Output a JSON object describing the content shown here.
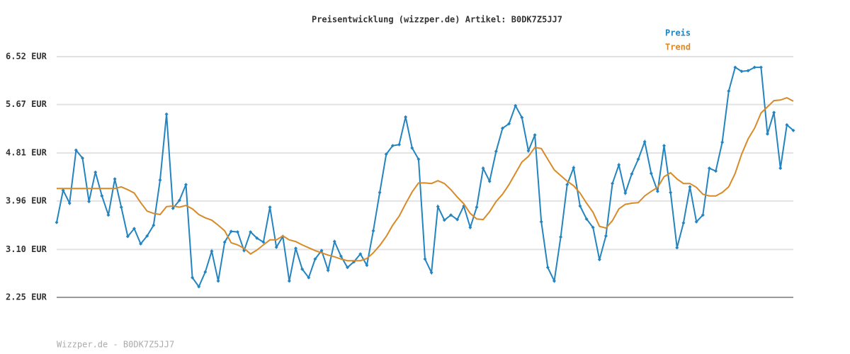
{
  "chart_data": {
    "type": "line",
    "title": "Preisentwicklung (wizzper.de) Artikel: B0DK7Z5JJ7",
    "footer": "Wizzper.de - B0DK7Z5JJ7",
    "ylim": [
      2.25,
      6.52
    ],
    "yticks": [
      {
        "value": 2.25,
        "label": "2.25 EUR"
      },
      {
        "value": 3.1,
        "label": "3.10 EUR"
      },
      {
        "value": 3.96,
        "label": "3.96 EUR"
      },
      {
        "value": 4.81,
        "label": "4.81 EUR"
      },
      {
        "value": 5.67,
        "label": "5.67 EUR"
      },
      {
        "value": 6.52,
        "label": "6.52 EUR"
      }
    ],
    "grid": true,
    "legend": "top-right",
    "series": [
      {
        "name": "Preis",
        "color": "#2384c0",
        "markers": true,
        "values": [
          3.58,
          4.15,
          3.92,
          4.86,
          4.72,
          3.95,
          4.47,
          4.05,
          3.71,
          4.35,
          3.85,
          3.33,
          3.47,
          3.2,
          3.34,
          3.53,
          4.33,
          5.5,
          3.83,
          3.97,
          4.25,
          2.6,
          2.44,
          2.7,
          3.07,
          2.54,
          3.23,
          3.42,
          3.41,
          3.08,
          3.41,
          3.3,
          3.23,
          3.85,
          3.14,
          3.33,
          2.54,
          3.12,
          2.75,
          2.6,
          2.93,
          3.08,
          2.73,
          3.24,
          2.98,
          2.78,
          2.88,
          3.02,
          2.82,
          3.43,
          4.11,
          4.79,
          4.94,
          4.96,
          5.45,
          4.9,
          4.7,
          2.93,
          2.69,
          3.86,
          3.62,
          3.71,
          3.63,
          3.87,
          3.49,
          3.85,
          4.54,
          4.31,
          4.84,
          5.25,
          5.33,
          5.65,
          5.44,
          4.85,
          5.13,
          3.59,
          2.78,
          2.54,
          3.32,
          4.25,
          4.55,
          3.87,
          3.64,
          3.49,
          2.92,
          3.34,
          4.27,
          4.6,
          4.1,
          4.44,
          4.7,
          5.01,
          4.45,
          4.13,
          4.94,
          4.11,
          3.13,
          3.57,
          4.21,
          3.59,
          3.71,
          4.54,
          4.49,
          5.0,
          5.91,
          6.33,
          6.26,
          6.27,
          6.33,
          6.33,
          5.15,
          5.53,
          4.54,
          5.31,
          5.21
        ]
      },
      {
        "name": "Trend",
        "color": "#d88a28",
        "markers": false,
        "values": [
          4.18,
          4.18,
          4.18,
          4.18,
          4.18,
          4.18,
          4.18,
          4.18,
          4.18,
          4.18,
          4.21,
          4.16,
          4.1,
          3.93,
          3.78,
          3.74,
          3.72,
          3.86,
          3.87,
          3.85,
          3.88,
          3.82,
          3.72,
          3.66,
          3.62,
          3.53,
          3.43,
          3.22,
          3.18,
          3.12,
          3.02,
          3.09,
          3.18,
          3.27,
          3.27,
          3.34,
          3.27,
          3.24,
          3.18,
          3.13,
          3.08,
          3.04,
          3.0,
          2.97,
          2.93,
          2.9,
          2.9,
          2.9,
          2.94,
          3.04,
          3.17,
          3.33,
          3.53,
          3.69,
          3.91,
          4.12,
          4.28,
          4.28,
          4.27,
          4.32,
          4.27,
          4.16,
          4.03,
          3.91,
          3.74,
          3.64,
          3.63,
          3.77,
          3.95,
          4.08,
          4.25,
          4.45,
          4.65,
          4.75,
          4.91,
          4.89,
          4.7,
          4.51,
          4.41,
          4.31,
          4.23,
          4.1,
          3.92,
          3.76,
          3.51,
          3.48,
          3.61,
          3.82,
          3.9,
          3.92,
          3.93,
          4.05,
          4.13,
          4.2,
          4.39,
          4.46,
          4.35,
          4.27,
          4.27,
          4.2,
          4.08,
          4.05,
          4.05,
          4.11,
          4.21,
          4.45,
          4.79,
          5.06,
          5.25,
          5.52,
          5.63,
          5.74,
          5.75,
          5.79,
          5.73
        ]
      }
    ]
  }
}
